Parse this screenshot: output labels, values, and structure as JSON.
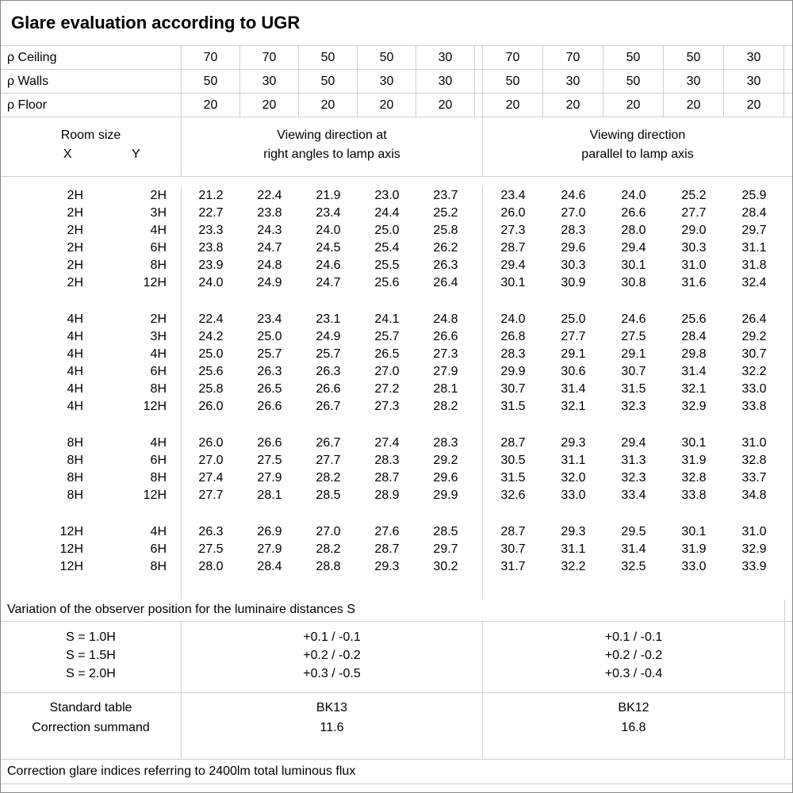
{
  "title": "Glare evaluation according to UGR",
  "header": {
    "reflectance_rows": [
      {
        "label": "ρ Ceiling",
        "values": [
          "70",
          "70",
          "50",
          "50",
          "30",
          "70",
          "70",
          "50",
          "50",
          "30"
        ]
      },
      {
        "label": "ρ Walls",
        "values": [
          "50",
          "30",
          "50",
          "30",
          "30",
          "50",
          "30",
          "50",
          "30",
          "30"
        ]
      },
      {
        "label": "ρ Floor",
        "values": [
          "20",
          "20",
          "20",
          "20",
          "20",
          "20",
          "20",
          "20",
          "20",
          "20"
        ]
      }
    ],
    "room_size_label": "Room size",
    "x_label": "X",
    "y_label": "Y",
    "group1_header": [
      "Viewing direction at",
      "right angles to lamp axis"
    ],
    "group2_header": [
      "Viewing direction",
      "parallel to lamp axis"
    ]
  },
  "body_groups": [
    {
      "rows": [
        {
          "x": "2H",
          "y": "2H",
          "values": [
            "21.2",
            "22.4",
            "21.9",
            "23.0",
            "23.7",
            "23.4",
            "24.6",
            "24.0",
            "25.2",
            "25.9"
          ]
        },
        {
          "x": "2H",
          "y": "3H",
          "values": [
            "22.7",
            "23.8",
            "23.4",
            "24.4",
            "25.2",
            "26.0",
            "27.0",
            "26.6",
            "27.7",
            "28.4"
          ]
        },
        {
          "x": "2H",
          "y": "4H",
          "values": [
            "23.3",
            "24.3",
            "24.0",
            "25.0",
            "25.8",
            "27.3",
            "28.3",
            "28.0",
            "29.0",
            "29.7"
          ]
        },
        {
          "x": "2H",
          "y": "6H",
          "values": [
            "23.8",
            "24.7",
            "24.5",
            "25.4",
            "26.2",
            "28.7",
            "29.6",
            "29.4",
            "30.3",
            "31.1"
          ]
        },
        {
          "x": "2H",
          "y": "8H",
          "values": [
            "23.9",
            "24.8",
            "24.6",
            "25.5",
            "26.3",
            "29.4",
            "30.3",
            "30.1",
            "31.0",
            "31.8"
          ]
        },
        {
          "x": "2H",
          "y": "12H",
          "values": [
            "24.0",
            "24.9",
            "24.7",
            "25.6",
            "26.4",
            "30.1",
            "30.9",
            "30.8",
            "31.6",
            "32.4"
          ]
        }
      ]
    },
    {
      "rows": [
        {
          "x": "4H",
          "y": "2H",
          "values": [
            "22.4",
            "23.4",
            "23.1",
            "24.1",
            "24.8",
            "24.0",
            "25.0",
            "24.6",
            "25.6",
            "26.4"
          ]
        },
        {
          "x": "4H",
          "y": "3H",
          "values": [
            "24.2",
            "25.0",
            "24.9",
            "25.7",
            "26.6",
            "26.8",
            "27.7",
            "27.5",
            "28.4",
            "29.2"
          ]
        },
        {
          "x": "4H",
          "y": "4H",
          "values": [
            "25.0",
            "25.7",
            "25.7",
            "26.5",
            "27.3",
            "28.3",
            "29.1",
            "29.1",
            "29.8",
            "30.7"
          ]
        },
        {
          "x": "4H",
          "y": "6H",
          "values": [
            "25.6",
            "26.3",
            "26.3",
            "27.0",
            "27.9",
            "29.9",
            "30.6",
            "30.7",
            "31.4",
            "32.2"
          ]
        },
        {
          "x": "4H",
          "y": "8H",
          "values": [
            "25.8",
            "26.5",
            "26.6",
            "27.2",
            "28.1",
            "30.7",
            "31.4",
            "31.5",
            "32.1",
            "33.0"
          ]
        },
        {
          "x": "4H",
          "y": "12H",
          "values": [
            "26.0",
            "26.6",
            "26.7",
            "27.3",
            "28.2",
            "31.5",
            "32.1",
            "32.3",
            "32.9",
            "33.8"
          ]
        }
      ]
    },
    {
      "rows": [
        {
          "x": "8H",
          "y": "4H",
          "values": [
            "26.0",
            "26.6",
            "26.7",
            "27.4",
            "28.3",
            "28.7",
            "29.3",
            "29.4",
            "30.1",
            "31.0"
          ]
        },
        {
          "x": "8H",
          "y": "6H",
          "values": [
            "27.0",
            "27.5",
            "27.7",
            "28.3",
            "29.2",
            "30.5",
            "31.1",
            "31.3",
            "31.9",
            "32.8"
          ]
        },
        {
          "x": "8H",
          "y": "8H",
          "values": [
            "27.4",
            "27.9",
            "28.2",
            "28.7",
            "29.6",
            "31.5",
            "32.0",
            "32.3",
            "32.8",
            "33.7"
          ]
        },
        {
          "x": "8H",
          "y": "12H",
          "values": [
            "27.7",
            "28.1",
            "28.5",
            "28.9",
            "29.9",
            "32.6",
            "33.0",
            "33.4",
            "33.8",
            "34.8"
          ]
        }
      ]
    },
    {
      "rows": [
        {
          "x": "12H",
          "y": "4H",
          "values": [
            "26.3",
            "26.9",
            "27.0",
            "27.6",
            "28.5",
            "28.7",
            "29.3",
            "29.5",
            "30.1",
            "31.0"
          ]
        },
        {
          "x": "12H",
          "y": "6H",
          "values": [
            "27.5",
            "27.9",
            "28.2",
            "28.7",
            "29.7",
            "30.7",
            "31.1",
            "31.4",
            "31.9",
            "32.9"
          ]
        },
        {
          "x": "12H",
          "y": "8H",
          "values": [
            "28.0",
            "28.4",
            "28.8",
            "29.3",
            "30.2",
            "31.7",
            "32.2",
            "32.5",
            "33.0",
            "33.9"
          ]
        }
      ]
    }
  ],
  "variation": {
    "label": "Variation of the observer position for the luminaire distances S",
    "rows": [
      {
        "s": "S = 1.0H",
        "right_angles": "+0.1 / -0.1",
        "parallel": "+0.1 / -0.1"
      },
      {
        "s": "S = 1.5H",
        "right_angles": "+0.2 / -0.2",
        "parallel": "+0.2 / -0.2"
      },
      {
        "s": "S = 2.0H",
        "right_angles": "+0.3 / -0.5",
        "parallel": "+0.3 / -0.4"
      }
    ]
  },
  "standard": {
    "row_labels": [
      "Standard table",
      "Correction summand"
    ],
    "right_angles": [
      "BK13",
      "11.6"
    ],
    "parallel": [
      "BK12",
      "16.8"
    ]
  },
  "footer": "Correction glare indices referring to 2400lm total luminous flux",
  "colors": {
    "gridline": "#d0d0d0",
    "outer_border": "#888888",
    "text": "#000000",
    "background": "#ffffff"
  }
}
